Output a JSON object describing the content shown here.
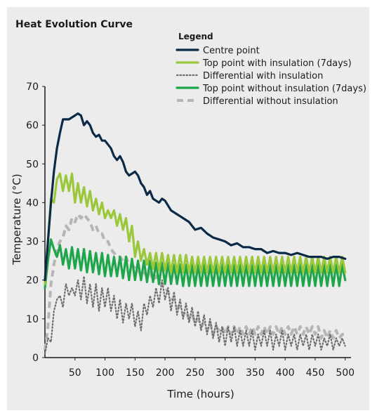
{
  "chart_data": {
    "type": "line",
    "title": "Heat Evolution Curve",
    "legend_title": "Legend",
    "legend_position": "top-right",
    "xlabel": "Time (hours)",
    "ylabel": "Temperature (°C)",
    "xlim": [
      0,
      505
    ],
    "ylim": [
      0,
      70
    ],
    "xticks": [
      50,
      100,
      150,
      200,
      250,
      300,
      350,
      400,
      450,
      500
    ],
    "yticks": [
      0,
      10,
      20,
      30,
      40,
      50,
      60,
      70
    ],
    "grid": false,
    "series": [
      {
        "name": "Centre point",
        "color": "#0b2a47",
        "style": "solid",
        "x": [
          0,
          5,
          10,
          15,
          20,
          25,
          30,
          35,
          40,
          45,
          50,
          55,
          60,
          65,
          70,
          75,
          80,
          85,
          90,
          95,
          100,
          105,
          110,
          115,
          120,
          125,
          130,
          135,
          140,
          145,
          150,
          155,
          160,
          165,
          170,
          175,
          180,
          185,
          190,
          195,
          200,
          210,
          220,
          230,
          240,
          250,
          260,
          270,
          280,
          290,
          300,
          310,
          320,
          330,
          340,
          350,
          360,
          370,
          380,
          390,
          400,
          410,
          420,
          430,
          440,
          450,
          460,
          470,
          480,
          490,
          500
        ],
        "values": [
          20,
          30,
          40,
          48,
          54,
          58,
          61.5,
          61.5,
          61.5,
          62,
          62.5,
          63,
          62.5,
          60,
          61,
          60,
          58,
          57,
          57.5,
          56,
          56,
          55,
          54,
          52,
          51,
          52,
          50.5,
          48,
          47,
          47.5,
          48,
          47,
          45,
          44,
          42,
          43,
          41,
          40.5,
          40,
          41,
          40.5,
          38,
          37,
          36,
          35,
          33,
          33.5,
          32,
          31,
          30.5,
          30,
          29,
          29.5,
          28.5,
          28.5,
          28,
          28,
          27,
          27.5,
          27,
          27,
          26.5,
          27,
          26.5,
          26,
          26,
          26,
          25.5,
          26,
          26,
          25.5
        ]
      },
      {
        "name": "Top point with insulation (7days)",
        "color": "#9bc83b",
        "style": "solid",
        "x": [
          0,
          5,
          10,
          15,
          20,
          25,
          30,
          35,
          40,
          45,
          50,
          55,
          60,
          65,
          70,
          75,
          80,
          85,
          90,
          95,
          100,
          105,
          110,
          115,
          120,
          125,
          130,
          135,
          140,
          145,
          150,
          155,
          160,
          165,
          170,
          175,
          180,
          185,
          190,
          195,
          200,
          205,
          210,
          215,
          220,
          225,
          230,
          235,
          240,
          245,
          250,
          255,
          260,
          265,
          270,
          275,
          280,
          285,
          290,
          295,
          300,
          305,
          310,
          315,
          320,
          325,
          330,
          335,
          340,
          345,
          350,
          355,
          360,
          365,
          370,
          375,
          380,
          385,
          390,
          395,
          400,
          405,
          410,
          415,
          420,
          425,
          430,
          435,
          440,
          445,
          450,
          455,
          460,
          465,
          470,
          475,
          480,
          485,
          490,
          495,
          500
        ],
        "values": [
          19,
          30,
          41,
          40,
          46,
          47.5,
          43,
          47,
          43,
          47.5,
          40,
          45,
          40,
          44,
          39,
          43,
          38,
          41,
          37,
          40,
          36,
          38,
          36,
          38,
          34,
          37,
          33,
          36,
          30,
          34,
          26,
          30,
          25,
          28,
          24,
          27,
          23,
          27,
          22.5,
          27,
          22.5,
          26.5,
          22,
          26.5,
          22,
          26.5,
          22,
          26.5,
          22,
          26,
          22,
          26,
          22,
          26,
          22,
          26,
          22,
          26,
          22,
          26,
          22,
          26,
          22,
          26,
          22,
          26,
          22,
          26,
          22,
          26,
          22,
          26,
          22,
          26,
          22,
          26,
          22,
          26,
          22,
          26,
          22,
          26,
          22,
          26,
          22,
          26,
          22,
          26,
          22,
          26,
          22,
          26,
          22,
          26,
          22,
          26,
          22,
          26,
          22,
          26,
          22
        ]
      },
      {
        "name": "Differential with insulation",
        "color": "#6e6e6e",
        "style": "dotted",
        "x": [
          0,
          5,
          10,
          15,
          20,
          25,
          30,
          35,
          40,
          45,
          50,
          55,
          60,
          65,
          70,
          75,
          80,
          85,
          90,
          95,
          100,
          105,
          110,
          115,
          120,
          125,
          130,
          135,
          140,
          145,
          150,
          155,
          160,
          165,
          170,
          175,
          180,
          185,
          190,
          195,
          200,
          205,
          210,
          215,
          220,
          225,
          230,
          235,
          240,
          245,
          250,
          255,
          260,
          265,
          270,
          275,
          280,
          285,
          290,
          295,
          300,
          305,
          310,
          315,
          320,
          325,
          330,
          335,
          340,
          345,
          350,
          355,
          360,
          365,
          370,
          375,
          380,
          385,
          390,
          395,
          400,
          405,
          410,
          415,
          420,
          425,
          430,
          435,
          440,
          445,
          450,
          455,
          460,
          465,
          470,
          475,
          480,
          485,
          490,
          495,
          500
        ],
        "values": [
          1,
          5,
          4,
          12,
          15,
          16,
          13,
          19,
          16,
          18,
          16,
          20,
          15,
          21,
          14,
          19,
          13,
          19,
          12,
          18,
          13,
          18,
          12,
          16,
          10,
          15,
          9,
          14,
          10,
          14,
          8,
          12,
          7,
          14,
          11,
          16,
          13,
          18,
          14,
          20,
          15,
          18,
          12,
          17,
          11,
          15,
          10,
          14,
          9,
          13,
          8,
          12,
          7,
          11,
          6,
          10,
          5,
          9,
          4,
          8,
          3,
          8,
          4,
          8,
          3,
          7,
          3,
          7,
          3,
          7,
          2,
          6,
          3,
          7,
          3,
          7,
          2,
          6,
          3,
          7,
          2,
          6,
          3,
          6,
          2,
          6,
          3,
          6,
          2,
          6,
          3,
          6,
          2,
          5,
          3,
          6,
          2,
          5,
          3,
          5,
          3
        ]
      },
      {
        "name": "Top point without insulation (7days)",
        "color": "#1fa54a",
        "style": "solid",
        "x": [
          0,
          5,
          10,
          15,
          20,
          25,
          30,
          35,
          40,
          45,
          50,
          55,
          60,
          65,
          70,
          75,
          80,
          85,
          90,
          95,
          100,
          105,
          110,
          115,
          120,
          125,
          130,
          135,
          140,
          145,
          150,
          155,
          160,
          165,
          170,
          175,
          180,
          185,
          190,
          195,
          200,
          205,
          210,
          215,
          220,
          225,
          230,
          235,
          240,
          245,
          250,
          255,
          260,
          265,
          270,
          275,
          280,
          285,
          290,
          295,
          300,
          305,
          310,
          315,
          320,
          325,
          330,
          335,
          340,
          345,
          350,
          355,
          360,
          365,
          370,
          375,
          380,
          385,
          390,
          395,
          400,
          405,
          410,
          415,
          420,
          425,
          430,
          435,
          440,
          445,
          450,
          455,
          460,
          465,
          470,
          475,
          480,
          485,
          490,
          495,
          500
        ],
        "values": [
          18,
          25,
          30.5,
          28,
          26,
          29,
          24,
          28,
          23,
          28.5,
          23,
          28,
          22.5,
          28,
          22,
          27.5,
          22,
          27,
          21.5,
          27,
          21,
          26.5,
          21,
          26,
          21,
          26,
          20.5,
          26,
          20,
          25.5,
          20,
          25,
          20,
          25,
          19.5,
          25,
          19.5,
          24.5,
          19,
          24.5,
          19,
          24.5,
          19,
          24,
          19,
          24,
          18.5,
          24,
          18.5,
          24,
          18.5,
          24,
          18.5,
          24,
          18.5,
          24,
          18.5,
          24,
          18.5,
          24,
          18.5,
          24,
          18.5,
          24,
          18.5,
          24,
          18.5,
          24,
          18.5,
          24,
          18.5,
          24,
          18.5,
          24,
          18.5,
          24,
          18.5,
          24,
          18.5,
          24,
          18.5,
          24,
          18.5,
          24,
          18.5,
          24,
          18.5,
          24,
          18.5,
          24,
          18.5,
          24,
          18.5,
          24,
          18.5,
          24,
          18.5,
          24,
          18.5,
          24,
          20
        ]
      },
      {
        "name": "Differential without insulation",
        "color": "#b5b5b5",
        "style": "dashed",
        "x": [
          0,
          5,
          10,
          15,
          20,
          25,
          30,
          35,
          40,
          45,
          50,
          55,
          60,
          65,
          70,
          75,
          80,
          85,
          90,
          95,
          100,
          105,
          110,
          115,
          120,
          125,
          130,
          135,
          140,
          145,
          150,
          155,
          160,
          165,
          170,
          175,
          180,
          185,
          190,
          195,
          200,
          205,
          210,
          215,
          220,
          225,
          230,
          235,
          240,
          245,
          250,
          255,
          260,
          265,
          270,
          275,
          280,
          285,
          290,
          295,
          300,
          305,
          310,
          315,
          320,
          325,
          330,
          335,
          340,
          345,
          350,
          355,
          360,
          365,
          370,
          375,
          380,
          385,
          390,
          395,
          400,
          405,
          410,
          415,
          420,
          425,
          430,
          435,
          440,
          445,
          450,
          455,
          460,
          465,
          470,
          475,
          480,
          485,
          490,
          495,
          500
        ],
        "values": [
          2,
          8,
          19,
          24,
          28,
          30,
          31,
          34,
          33,
          36,
          35,
          37,
          36,
          37,
          36,
          35,
          33,
          34,
          32,
          32,
          30,
          30,
          28,
          27,
          26,
          26,
          25,
          26,
          24,
          24,
          23,
          23,
          21,
          22,
          21,
          22,
          20,
          21,
          19,
          19,
          18,
          17,
          15,
          15,
          13,
          13,
          11,
          12,
          10,
          11,
          9,
          10,
          8,
          9,
          7,
          9,
          6,
          8,
          7,
          8,
          6,
          8,
          6,
          8,
          6,
          8,
          6,
          8,
          6,
          8,
          6,
          8,
          6,
          8,
          6,
          8,
          6,
          8,
          6,
          8,
          6,
          8,
          6,
          8,
          6,
          8,
          6,
          8,
          6,
          8,
          6,
          8,
          5,
          7,
          5,
          7,
          5,
          7,
          5,
          6,
          6
        ]
      }
    ]
  }
}
